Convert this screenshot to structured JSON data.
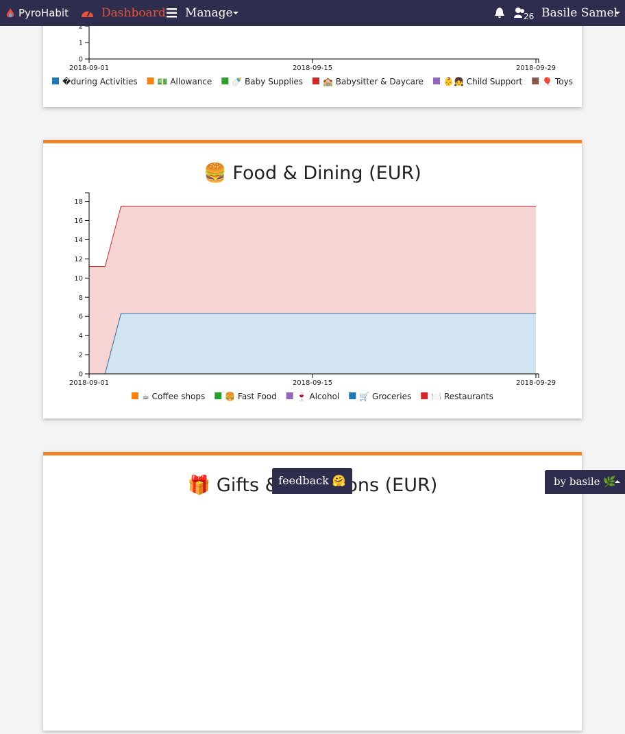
{
  "navbar": {
    "brand": "PyroHabit",
    "links": [
      "Dashboard",
      "Manage"
    ],
    "notifications": 26,
    "user": "Basile Samel"
  },
  "chart_data": [
    {
      "type": "line",
      "xlim": [
        "2018-09-01",
        "2018-09-29"
      ],
      "xticks": [
        "2018-09-01",
        "2018-09-15",
        "2018-09-29"
      ],
      "ylim": [
        0,
        11
      ],
      "yticks": [
        0,
        1,
        2
      ],
      "series": [
        {
          "name": "�during Activities",
          "color": "#1f77b4"
        },
        {
          "name": "💵 Allowance",
          "color": "#ff7f0e"
        },
        {
          "name": "🍼 Baby Supplies",
          "color": "#2ca02c"
        },
        {
          "name": "🏫 Babysitter & Daycare",
          "color": "#d62728"
        },
        {
          "name": "👶👧 Child Support",
          "color": "#9467bd"
        },
        {
          "name": "🎈 Toys",
          "color": "#8c564b"
        }
      ]
    },
    {
      "type": "area",
      "title": "🍔 Food & Dining (EUR)",
      "stacked": true,
      "x": [
        "2018-09-01",
        "2018-09-02",
        "2018-09-03",
        "2018-09-29"
      ],
      "xlim": [
        "2018-09-01",
        "2018-09-29"
      ],
      "xticks": [
        "2018-09-01",
        "2018-09-15",
        "2018-09-29"
      ],
      "ylim": [
        0,
        18.9
      ],
      "yticks": [
        0,
        2,
        4,
        6,
        8,
        10,
        12,
        14,
        16,
        18
      ],
      "series": [
        {
          "name": "☕ Coffee shops",
          "color": "#ff7f0e",
          "values": [
            0,
            0,
            0,
            0
          ]
        },
        {
          "name": "🍔 Fast Food",
          "color": "#2ca02c",
          "values": [
            0,
            0,
            0,
            0
          ]
        },
        {
          "name": "🍷 Alcohol",
          "color": "#9467bd",
          "values": [
            0,
            0,
            0,
            0
          ]
        },
        {
          "name": "🛒 Groceries",
          "color": "#1f77b4",
          "values": [
            0,
            0,
            6.3,
            6.3
          ]
        },
        {
          "name": "🍽️ Restaurants",
          "color": "#d62728",
          "values": [
            11.2,
            11.2,
            11.2,
            11.2
          ]
        }
      ]
    },
    {
      "type": "area",
      "title": "🎁 Gifts & Donations (EUR)"
    }
  ],
  "feedback": "feedback 🤗",
  "footer": "by basile 🌿"
}
